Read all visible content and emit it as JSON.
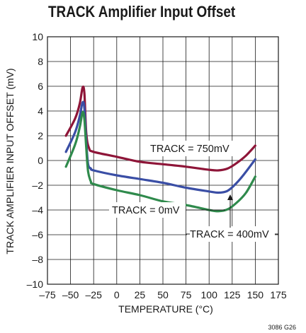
{
  "chart_data": {
    "type": "line",
    "title": "TRACK Amplifier Input Offset",
    "xlabel": "TEMPERATURE (°C)",
    "ylabel": "TRACK AMPLIFIER INPUT OFFSET (mV)",
    "xlim": [
      -75,
      175
    ],
    "ylim": [
      -10,
      10
    ],
    "xticks": [
      "–75",
      "–50",
      "–25",
      "0",
      "25",
      "50",
      "75",
      "100",
      "125",
      "150",
      "175"
    ],
    "yticks": [
      "10",
      "8",
      "6",
      "4",
      "2",
      "0",
      "–2",
      "–4",
      "–6",
      "–8",
      "–10"
    ],
    "grid": true,
    "figure_code": "3086 G26",
    "series": [
      {
        "name": "TRACK = 750mV",
        "color": "#8e1538",
        "x": [
          -55,
          -45,
          -40,
          -37,
          -35,
          -33,
          -30,
          -25,
          0,
          25,
          50,
          75,
          100,
          110,
          120,
          130,
          140,
          150
        ],
        "y": [
          2.0,
          3.4,
          4.6,
          5.9,
          5.4,
          2.2,
          1.0,
          0.7,
          0.3,
          -0.1,
          -0.3,
          -0.5,
          -0.75,
          -0.8,
          -0.65,
          -0.2,
          0.4,
          1.2
        ]
      },
      {
        "name": "TRACK = 0mV",
        "color": "#3a4ea5",
        "x": [
          -55,
          -45,
          -40,
          -37,
          -35,
          -33,
          -31,
          -28,
          -25,
          0,
          25,
          50,
          75,
          100,
          110,
          120,
          130,
          140,
          150
        ],
        "y": [
          0.7,
          2.3,
          3.6,
          4.7,
          4.2,
          1.5,
          -0.3,
          -0.65,
          -0.8,
          -1.2,
          -1.5,
          -1.8,
          -2.2,
          -2.5,
          -2.6,
          -2.45,
          -1.8,
          -0.9,
          0.1
        ]
      },
      {
        "name": "TRACK = 400mV",
        "color": "#2f8a4c",
        "x": [
          -55,
          -45,
          -40,
          -37,
          -35,
          -33,
          -31,
          -28,
          -25,
          0,
          25,
          50,
          75,
          100,
          110,
          120,
          130,
          140,
          150
        ],
        "y": [
          -0.5,
          1.3,
          2.7,
          3.9,
          3.3,
          1.0,
          -0.9,
          -1.7,
          -1.9,
          -2.4,
          -2.8,
          -3.3,
          -3.6,
          -4.0,
          -4.1,
          -3.95,
          -3.4,
          -2.6,
          -1.3
        ]
      }
    ],
    "annotations": [
      {
        "text": "TRACK = 750mV"
      },
      {
        "text": "TRACK = 0mV"
      },
      {
        "text": "TRACK = 400mV"
      }
    ]
  }
}
